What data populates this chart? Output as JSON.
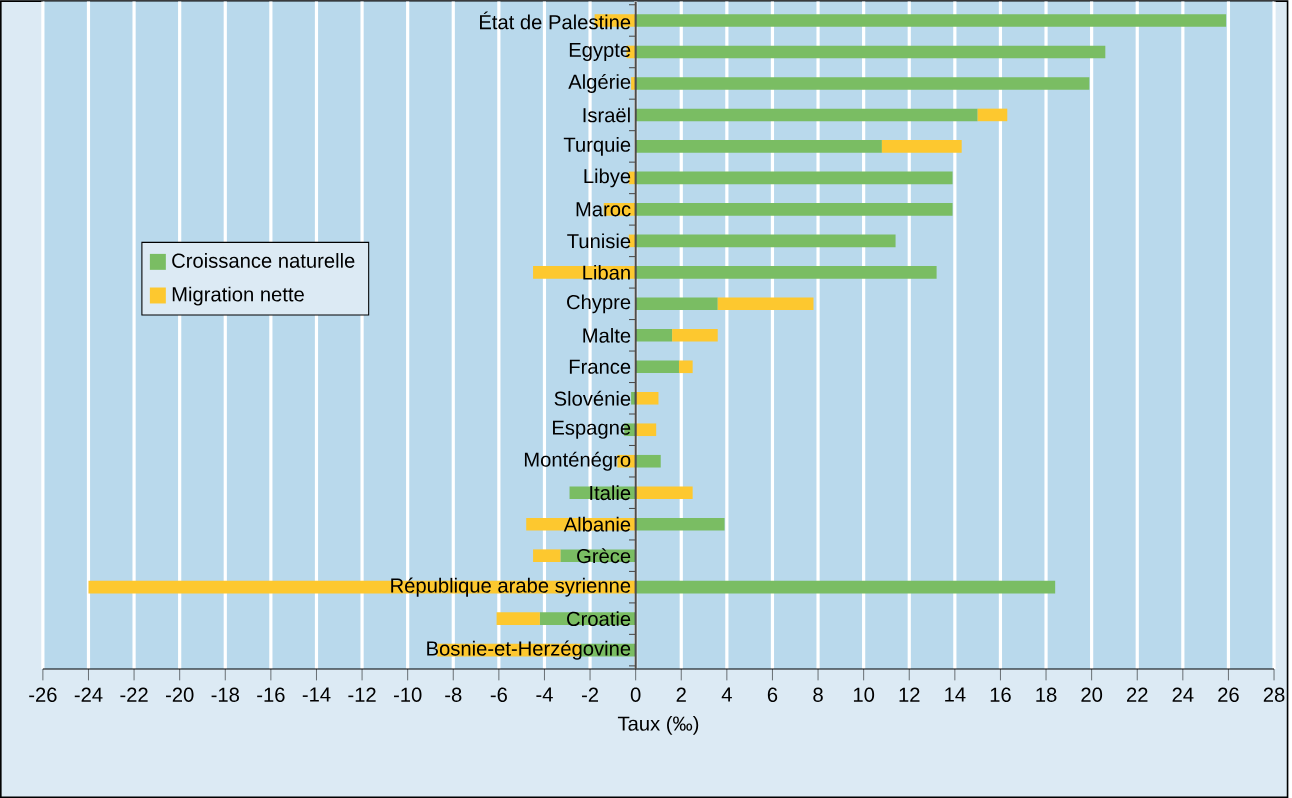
{
  "chart_data": {
    "type": "bar",
    "orientation": "horizontal",
    "stacked": true,
    "categories": [
      "État de Palestine",
      "Egypte",
      "Algérie",
      "Israël",
      "Turquie",
      "Libye",
      "Maroc",
      "Tunisie",
      "Liban",
      "Chypre",
      "Malte",
      "France",
      "Slovénie",
      "Espagne",
      "Monténégro",
      "Italie",
      "Albanie",
      "Grèce",
      "République arabe syrienne",
      "Croatie",
      "Bosnie-et-Herzégovine"
    ],
    "series": [
      {
        "name": "Croissance naturelle",
        "color": "#7abd63",
        "values": [
          25.9,
          20.6,
          19.9,
          15.0,
          10.8,
          13.9,
          13.9,
          11.4,
          13.2,
          3.6,
          1.6,
          1.9,
          -0.2,
          -0.5,
          1.1,
          -2.9,
          3.9,
          -3.3,
          18.4,
          -4.2,
          -2.4
        ]
      },
      {
        "name": "Migration nette",
        "color": "#fdc82f",
        "values": [
          -1.8,
          -0.4,
          -0.2,
          1.3,
          3.5,
          -0.3,
          -1.4,
          -0.3,
          -4.5,
          4.2,
          2.0,
          0.6,
          1.0,
          0.9,
          -0.8,
          2.5,
          -4.8,
          -1.2,
          -24.0,
          -1.9,
          -6.3
        ]
      }
    ],
    "xlim": [
      -26,
      28
    ],
    "xticks": [
      -26,
      -24,
      -22,
      -20,
      -18,
      -16,
      -14,
      -12,
      -10,
      -8,
      -6,
      -4,
      -2,
      0,
      2,
      4,
      6,
      8,
      10,
      12,
      14,
      16,
      18,
      20,
      22,
      24,
      26,
      28
    ],
    "xlabel": "Taux (‰)",
    "grid": "x",
    "legend": "left"
  }
}
